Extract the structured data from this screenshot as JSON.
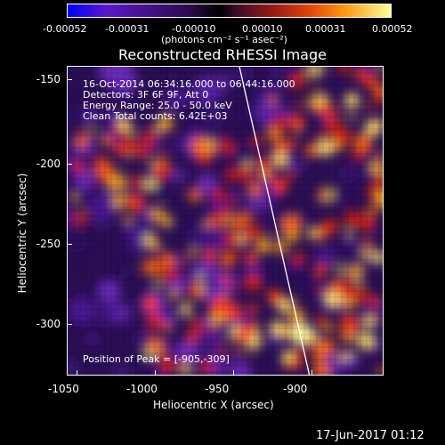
{
  "colorbar": {
    "ticks": [
      "-0.00052",
      "-0.00031",
      "-0.00010",
      "0.00010",
      "0.00031",
      "0.00052"
    ],
    "units": "(photons cm⁻² s⁻¹ asec⁻²)"
  },
  "title": "Reconstructed RHESSI Image",
  "info": {
    "time": "16-Oct-2014 06:34:16.000 to 06:44:16.000",
    "detectors": "Detectors: 3F 6F 9F, Att 0",
    "energy": "Energy Range: 25.0 - 50.0 keV",
    "algorithm": "Clean    Total counts: 6.42E+03",
    "peak": "Position of Peak = [-905,-309]"
  },
  "axes": {
    "xlabel": "Heliocentric X (arcsec)",
    "ylabel": "Heliocentric Y (arcsec)",
    "xticks": [
      "-1050",
      "-1000",
      "-950",
      "-900"
    ],
    "yticks": [
      "-150",
      "-200",
      "-250",
      "-300"
    ]
  },
  "footer": "17-Jun-2017 01:12",
  "colors": {
    "background": "#000000",
    "foreground": "#ffffff",
    "limb_line": "#ffffff"
  }
}
